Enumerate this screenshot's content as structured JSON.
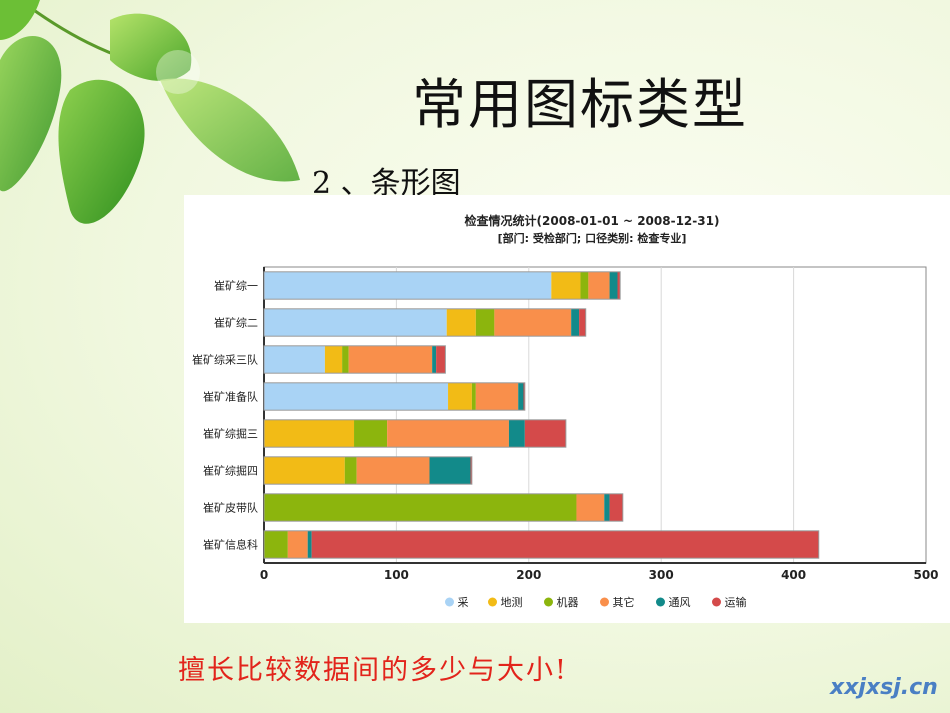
{
  "slide": {
    "title": "常用图标类型",
    "subtitle": "2 、条形图",
    "caption": "擅长比较数据间的多少与大小!",
    "watermark": "xxjxsj.cn"
  },
  "colors": {
    "background": "#eef6dc",
    "caption": "#e2241b",
    "watermark": "#4a7fc4"
  },
  "chart_data": {
    "type": "bar",
    "orientation": "horizontal",
    "stacked": true,
    "title": "检查情况统计(2008-01-01 ~ 2008-12-31)",
    "subtitle": "[部门: 受检部门; 口径类别: 检查专业]",
    "categories": [
      "崔矿综一",
      "崔矿综二",
      "崔矿综采三队",
      "崔矿准备队",
      "崔矿综掘三",
      "崔矿综掘四",
      "崔矿皮带队",
      "崔矿信息科"
    ],
    "series": [
      {
        "name": "采",
        "color": "#a9d3f5",
        "values": [
          217,
          138,
          46,
          139,
          0,
          0,
          0,
          0
        ]
      },
      {
        "name": "地测",
        "color": "#f2bb16",
        "values": [
          22,
          22,
          13,
          18,
          68,
          61,
          0,
          0
        ]
      },
      {
        "name": "机器",
        "color": "#8cb50d",
        "values": [
          6,
          14,
          5,
          3,
          25,
          9,
          236,
          18
        ]
      },
      {
        "name": "其它",
        "color": "#f98f4b",
        "values": [
          16,
          58,
          63,
          32,
          92,
          55,
          21,
          15
        ]
      },
      {
        "name": "通风",
        "color": "#128a8a",
        "values": [
          6,
          6,
          3,
          4,
          12,
          31,
          4,
          3
        ]
      },
      {
        "name": "运输",
        "color": "#d44a4a",
        "values": [
          2,
          5,
          7,
          1,
          31,
          1,
          10,
          383
        ]
      }
    ],
    "xlim": [
      0,
      500
    ],
    "xticks": [
      0,
      100,
      200,
      300,
      400,
      500
    ],
    "grid": true,
    "legend": "bottom"
  }
}
